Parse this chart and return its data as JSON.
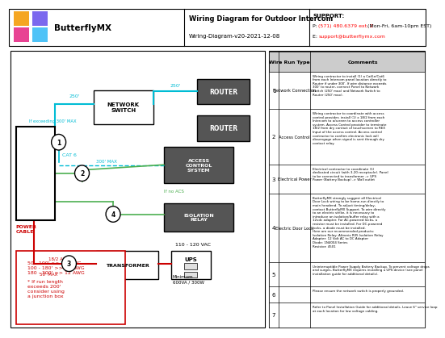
{
  "title": "Wiring Diagram for Outdoor Intercom",
  "subtitle": "Wiring-Diagram-v20-2021-12-08",
  "logo_text": "ButterflyMX",
  "support_label": "SUPPORT:",
  "support_phone": "P: (571) 480.6379 ext. 2 (Mon-Fri, 6am-10pm EST)",
  "support_email": "E: support@butterflymx.com",
  "bg_color": "#ffffff",
  "cyan": "#00bcd4",
  "green": "#4caf50",
  "red_c": "#cc0000",
  "gray_box": "#555555",
  "table_rows": [
    {
      "num": "1",
      "type": "Network Connection",
      "comment": "Wiring contractor to install (1) a Cat5e/Cat6\nfrom each Intercom panel location directly to\nRouter if under 300'. If wire distance exceeds\n300' to router, connect Panel to Network\nSwitch (250' max) and Network Switch to\nRouter (250' max)."
    },
    {
      "num": "2",
      "type": "Access Control",
      "comment": "Wiring contractor to coordinate with access\ncontrol provider, install (1) x 18/2 from each\nIntercom to a/screen to access controller\nsystem. Access Control provider to terminate\n18/2 from dry contact of touchscreen to REX\nInput of the access control. Access control\ncontractor to confirm electronic lock will\ndissengage when signal is sent through dry\ncontact relay."
    },
    {
      "num": "3",
      "type": "Electrical Power",
      "comment": "Electrical contractor to coordinate (1)\ndedicated circuit (with 3-20 receptacle). Panel\nto be connected to transformer -> UPS\nPower (Battery Backup) -> Wall outlet"
    },
    {
      "num": "4",
      "type": "Electric Door Lock",
      "comment": "ButterflyMX strongly suggest all Electrical\nDoor Lock wiring to be home-run directly to\nmain headend. To adjust timing/delay,\ncontact ButterflyMX Support. To wire directly\nto an electric strike, it is necessary to\nintroduce an isolation/buffer relay with a\n12vdc adapter. For AC-powered locks, a\nresistor must be installed. For DC-powered\nlocks, a diode must be installed.\nHere are our recommended products:\nIsolation Relay: Altronix R05 Isolation Relay\nAdapter: 12 Volt AC to DC Adapter\nDiode: 1N4004 Series\nResistor: 4501"
    },
    {
      "num": "5",
      "type": "",
      "comment": "Uninterruptible Power Supply Battery Backup. To prevent voltage drops\nand surges, ButterflyMX requires installing a UPS device (see panel\ninstallation guide for additional details)."
    },
    {
      "num": "6",
      "type": "",
      "comment": "Please ensure the network switch is properly grounded."
    },
    {
      "num": "7",
      "type": "",
      "comment": "Refer to Panel Installation Guide for additional details. Leave 6\" service loop\nat each location for low voltage cabling."
    }
  ],
  "wire_run_type_col": "Wire Run Type",
  "comments_col": "Comments",
  "network_switch_label": "NETWORK\nSWITCH",
  "router_label": "ROUTER",
  "acs_label": "ACCESS\nCONTROL\nSYSTEM",
  "isolation_relay_label": "ISOLATION\nRELAY",
  "transformer_label": "TRANSFORMER",
  "ups_label": "UPS",
  "power_cable_label": "POWER\nCABLE",
  "cat6_label": "CAT 6",
  "if_no_acs_label": "If no ACS",
  "awg_label": "18/2 AWG",
  "max50_label": "50' MAX",
  "vac_label": "110 - 120 VAC",
  "minimum_label": "Minimum\n600VA / 300W",
  "dist250a": "250'",
  "dist250b": "250'",
  "dist300": "300' MAX",
  "exceeding_label": "If exceeding 300' MAX",
  "awg_box_lines": [
    "50 - 100' >> 18 AWG",
    "100 - 180' >> 14 AWG",
    "180 - 300' >> 12 AWG",
    "",
    "* If run length",
    "exceeds 200'",
    "consider using",
    "a junction box"
  ],
  "logo_colors": [
    "#f5a623",
    "#7b68ee",
    "#e84393",
    "#4fc3f7"
  ]
}
